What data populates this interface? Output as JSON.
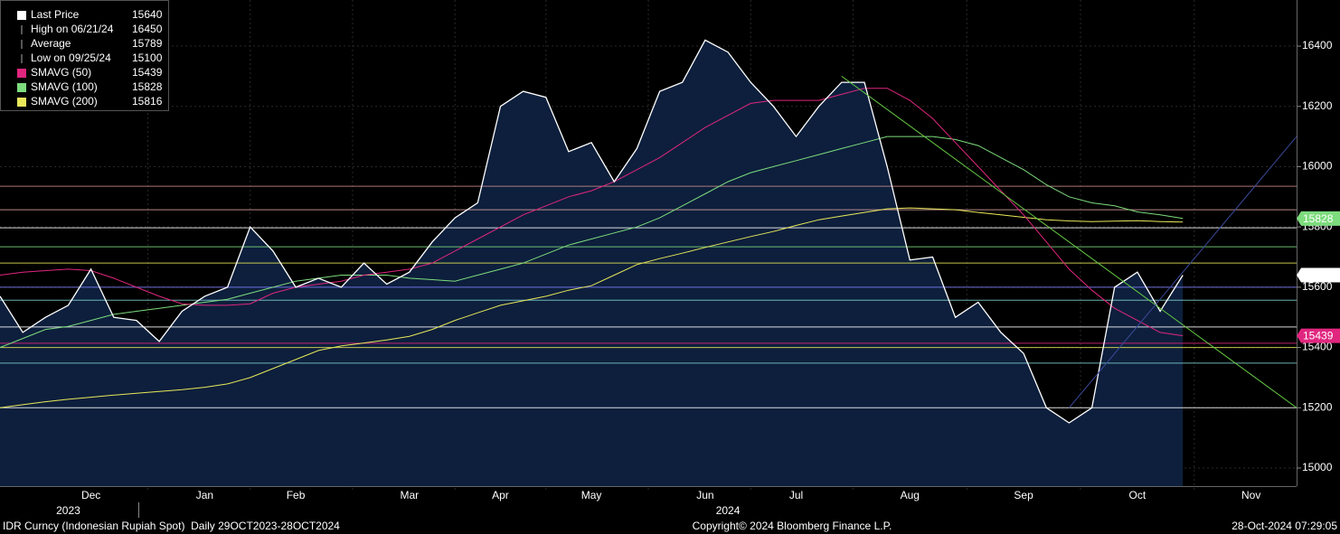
{
  "chart_data": {
    "type": "line",
    "categories": [
      null,
      null,
      null,
      null,
      "Dec",
      null,
      null,
      null,
      null,
      "Jan",
      null,
      null,
      null,
      "Feb",
      null,
      null,
      null,
      null,
      "Mar",
      null,
      null,
      null,
      "Apr",
      null,
      null,
      null,
      "May",
      null,
      null,
      null,
      null,
      "Jun",
      null,
      null,
      null,
      "Jul",
      null,
      null,
      null,
      null,
      "Aug",
      null,
      null,
      null,
      null,
      "Sep",
      null,
      null,
      null,
      null,
      "Oct",
      null,
      null,
      null,
      null,
      "Nov",
      null,
      null
    ],
    "year_categories": [
      null,
      null,
      null,
      "2023",
      null,
      null,
      null,
      null,
      null,
      null,
      null,
      null,
      null,
      null,
      null,
      null,
      null,
      null,
      null,
      null,
      null,
      null,
      null,
      null,
      null,
      null,
      null,
      null,
      null,
      null,
      null,
      null,
      "2024",
      null,
      null,
      null,
      null,
      null,
      null,
      null,
      null,
      null,
      null,
      null,
      null,
      null,
      null,
      null,
      null,
      null,
      null,
      null,
      null,
      null,
      null,
      null,
      null,
      null
    ],
    "series": [
      {
        "name": "Last Price",
        "color": "#ffffff",
        "fill": "#0d1f3c",
        "values": [
          15570,
          15450,
          15500,
          15540,
          15660,
          15500,
          15490,
          15420,
          15520,
          15570,
          15600,
          15800,
          15720,
          15600,
          15630,
          15600,
          15680,
          15610,
          15650,
          15750,
          15830,
          15880,
          16200,
          16250,
          16230,
          16050,
          16080,
          15950,
          16060,
          16250,
          16280,
          16420,
          16380,
          16280,
          16200,
          16100,
          16200,
          16280,
          16280,
          16000,
          15690,
          15700,
          15500,
          15550,
          15450,
          15380,
          15200,
          15150,
          15200,
          15600,
          15650,
          15520,
          15640,
          null,
          null,
          null,
          null,
          null
        ]
      },
      {
        "name": "SMAVG (50)",
        "color": "#e0267f",
        "values": [
          15640,
          15650,
          15655,
          15660,
          15655,
          15630,
          15600,
          15570,
          15545,
          15540,
          15540,
          15545,
          15580,
          15600,
          15610,
          15620,
          15640,
          15650,
          15660,
          15680,
          15720,
          15760,
          15800,
          15840,
          15870,
          15900,
          15920,
          15950,
          15990,
          16030,
          16080,
          16130,
          16170,
          16210,
          16220,
          16220,
          16220,
          16240,
          16260,
          16260,
          16220,
          16160,
          16080,
          16000,
          15920,
          15840,
          15750,
          15660,
          15590,
          15530,
          15490,
          15450,
          15439,
          null,
          null,
          null,
          null,
          null
        ]
      },
      {
        "name": "SMAVG (100)",
        "color": "#7ddc7d",
        "values": [
          15400,
          15430,
          15460,
          15470,
          15490,
          15510,
          15520,
          15530,
          15540,
          15550,
          15560,
          15580,
          15600,
          15620,
          15630,
          15640,
          15640,
          15640,
          15630,
          15625,
          15620,
          15640,
          15660,
          15680,
          15710,
          15740,
          15760,
          15780,
          15800,
          15830,
          15870,
          15910,
          15950,
          15980,
          16000,
          16020,
          16040,
          16060,
          16080,
          16100,
          16100,
          16100,
          16090,
          16070,
          16030,
          15990,
          15940,
          15900,
          15880,
          15870,
          15850,
          15840,
          15828,
          null,
          null,
          null,
          null,
          null
        ]
      },
      {
        "name": "SMAVG (200)",
        "color": "#e8e85a",
        "values": [
          15200,
          15210,
          15220,
          15228,
          15235,
          15242,
          15248,
          15254,
          15260,
          15268,
          15279,
          15300,
          15330,
          15360,
          15390,
          15405,
          15415,
          15425,
          15437,
          15460,
          15490,
          15515,
          15540,
          15555,
          15570,
          15590,
          15605,
          15640,
          15675,
          15695,
          15713,
          15732,
          15750,
          15768,
          15785,
          15805,
          15824,
          15836,
          15848,
          15860,
          15863,
          15860,
          15857,
          15848,
          15840,
          15832,
          15824,
          15820,
          15818,
          15819,
          15821,
          15818,
          15816,
          null,
          null,
          null,
          null,
          null
        ]
      }
    ],
    "stats": [
      {
        "name": "High on 06/21/24",
        "value": 16450
      },
      {
        "name": "Average",
        "value": 15789
      },
      {
        "name": "Low on 09/25/24",
        "value": 15100
      }
    ],
    "reference_lines": [
      {
        "value": 15935,
        "color": "#c98a8a"
      },
      {
        "value": 15857,
        "color": "#d9a0a0"
      },
      {
        "value": 15797,
        "color": "#ffffff"
      },
      {
        "value": 15734,
        "color": "#7ddc7d"
      },
      {
        "value": 15680,
        "color": "#e8e85a"
      },
      {
        "value": 15600,
        "color": "#8080ff"
      },
      {
        "value": 15557,
        "color": "#7fd0d0"
      },
      {
        "value": 15468,
        "color": "#ffffff"
      },
      {
        "value": 15414,
        "color": "#e0267f"
      },
      {
        "value": 15400,
        "color": "#e8e85a"
      },
      {
        "value": 15348,
        "color": "#7fd0d0"
      },
      {
        "value": 15200,
        "color": "#ffffff"
      }
    ],
    "trend_lines": [
      {
        "from": [
          37,
          16300
        ],
        "to": [
          57,
          15200
        ],
        "color": "#66cc44"
      },
      {
        "from": [
          47,
          15200
        ],
        "to": [
          57,
          16100
        ],
        "color": "#3a4a9a"
      }
    ],
    "ylim": [
      14940,
      16553
    ],
    "yticks": [
      15000,
      15200,
      15400,
      15600,
      15800,
      16000,
      16200,
      16400
    ],
    "grid": true,
    "footer": {
      "left": "IDR Curncy (Indonesian Rupiah Spot)  Daily 29OCT2023-28OCT2024",
      "center": "Copyright© 2024 Bloomberg Finance L.P.",
      "right": "28-Oct-2024 07:29:05"
    }
  }
}
